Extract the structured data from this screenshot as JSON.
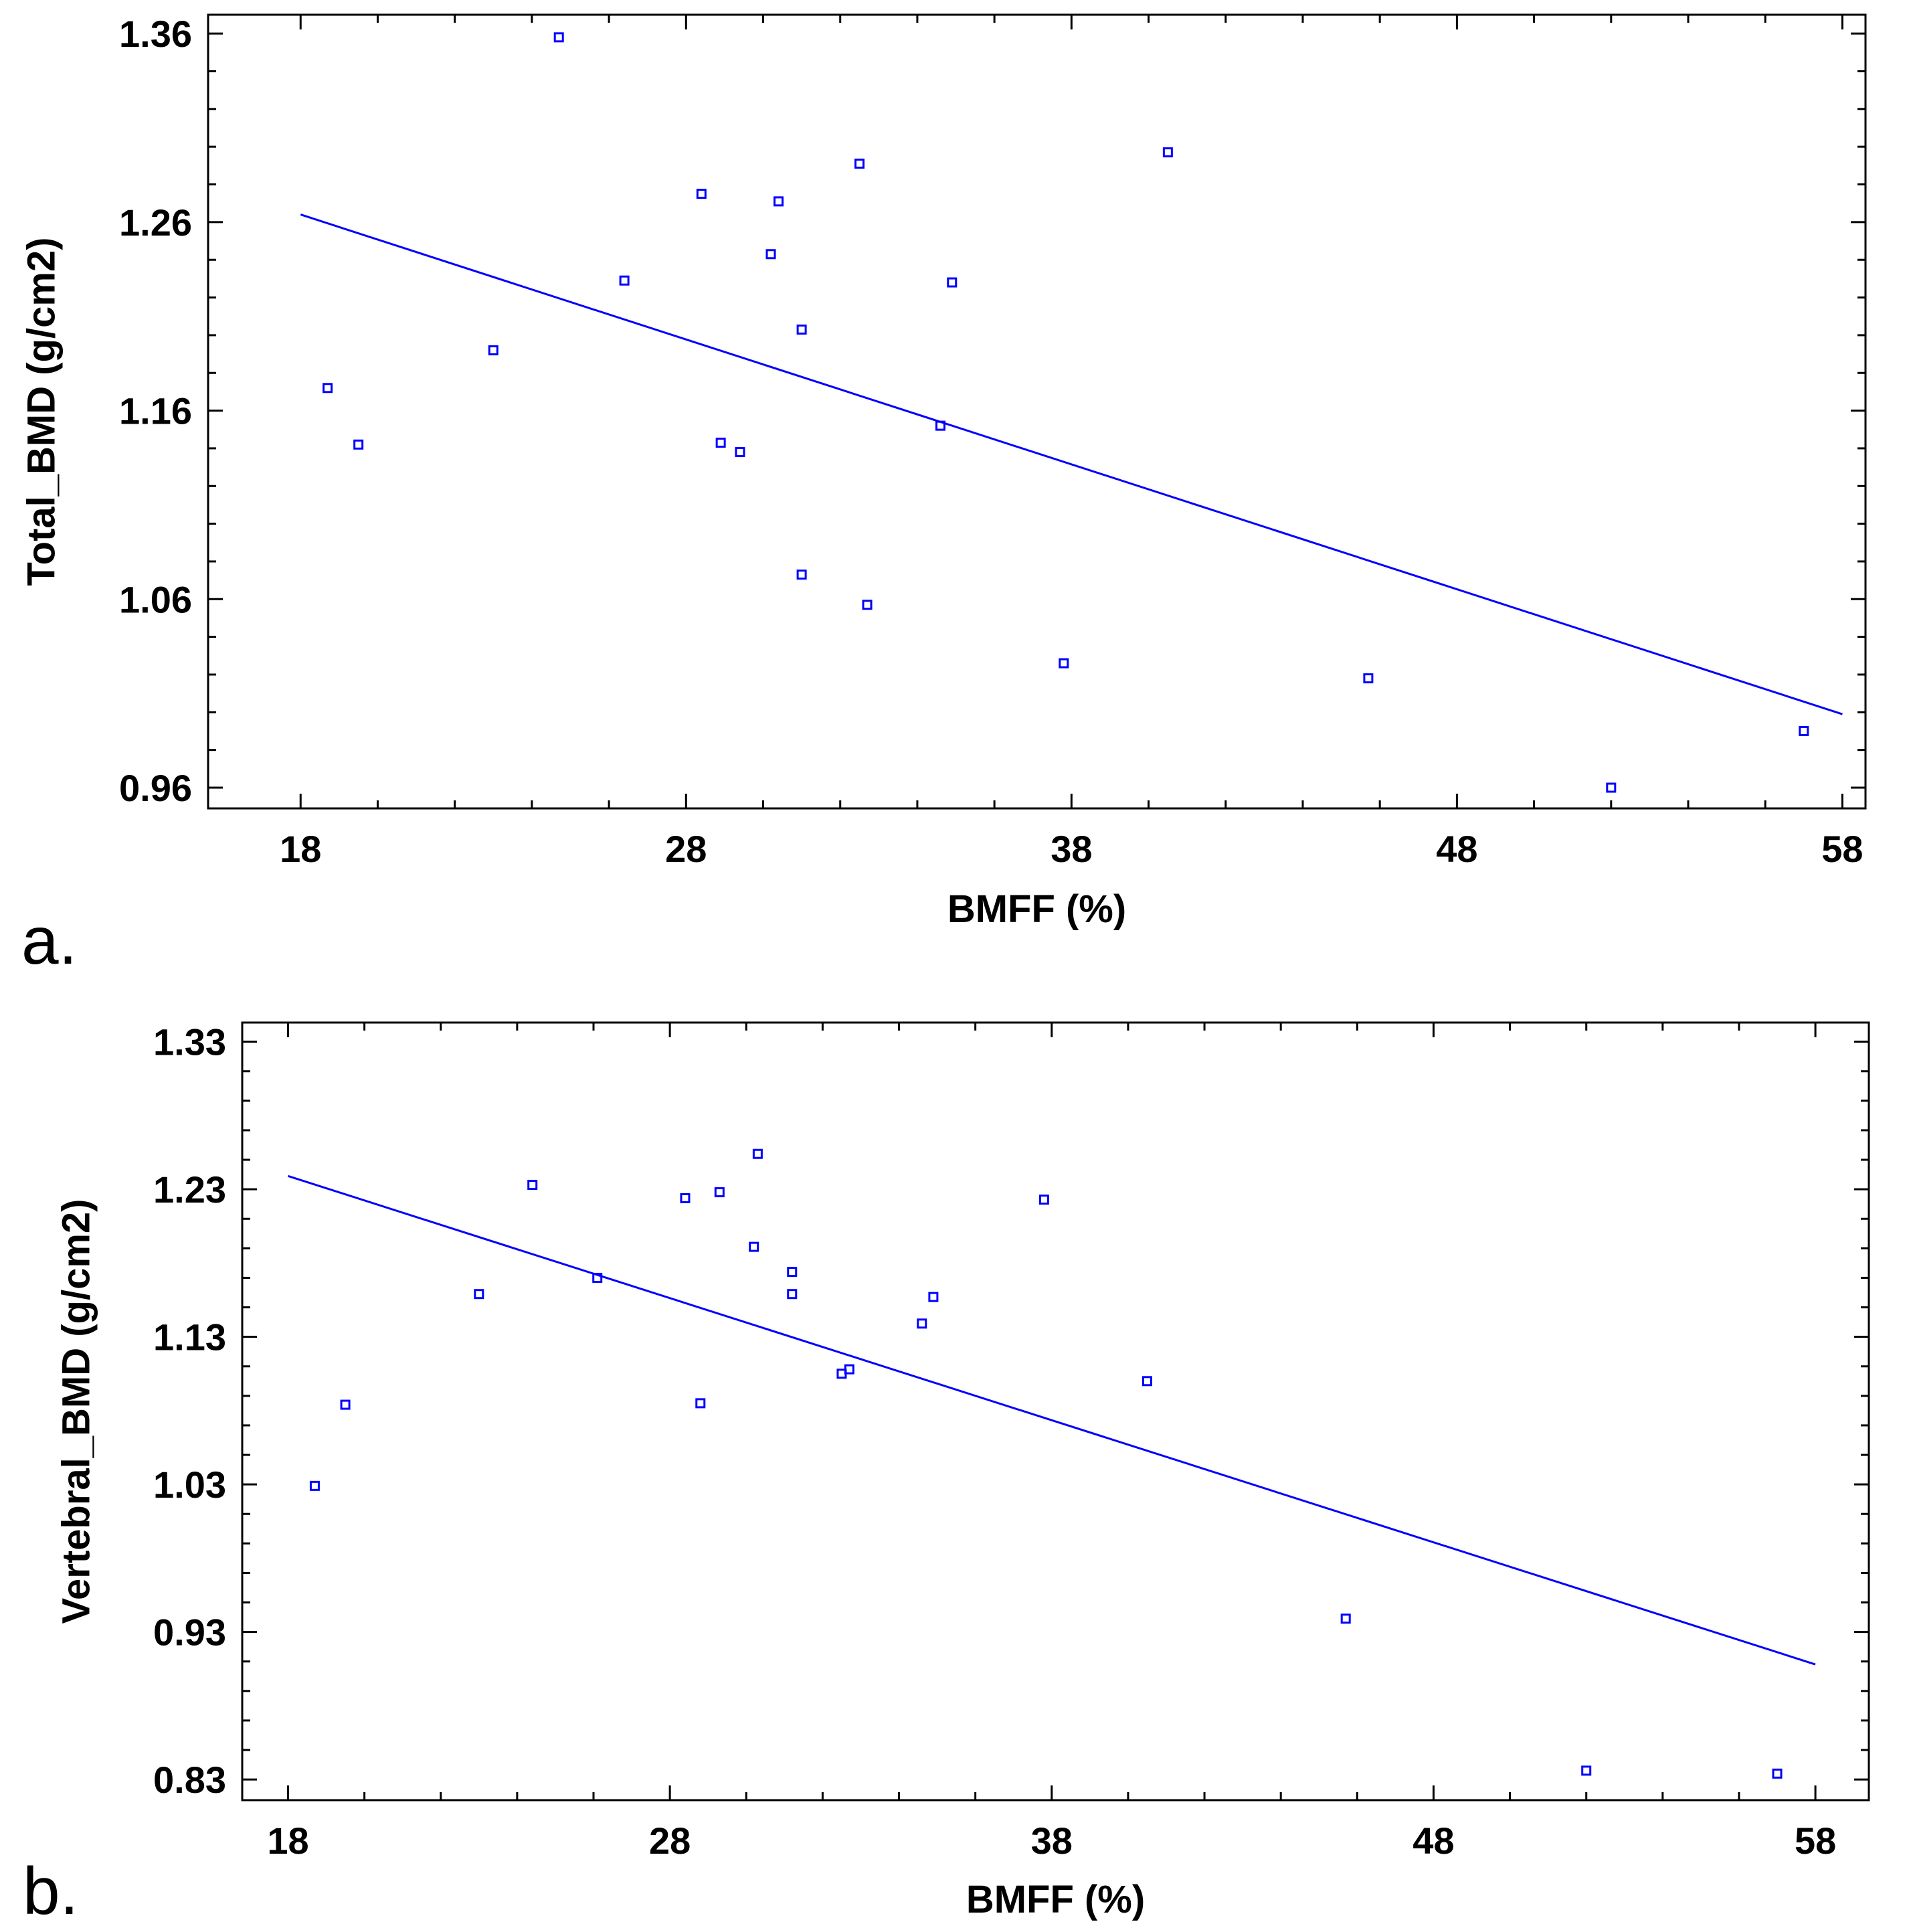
{
  "colors": {
    "series": "#0000ff",
    "axis": "#000000",
    "background": "#ffffff"
  },
  "chart_data": [
    {
      "type": "scatter",
      "panel_label": "a.",
      "title": "",
      "xlabel": "BMFF (%)",
      "ylabel": "Total_BMD (g/cm2)",
      "xlim": [
        15.6,
        58.6
      ],
      "ylim": [
        0.949,
        1.37
      ],
      "xticks": [
        18,
        28,
        38,
        48,
        58
      ],
      "xtick_labels": [
        "18",
        "28",
        "38",
        "48",
        "58"
      ],
      "yticks": [
        0.96,
        1.06,
        1.16,
        1.26,
        1.36
      ],
      "ytick_labels": [
        "0.96",
        "1.06",
        "1.16",
        "1.26",
        "1.36"
      ],
      "grid": false,
      "fit_line": {
        "x": [
          18,
          58
        ],
        "y": [
          1.264,
          0.999
        ]
      },
      "series": [
        {
          "name": "observations",
          "marker": "open-square",
          "x": [
            18.7,
            19.5,
            23.0,
            24.7,
            26.4,
            28.4,
            28.9,
            29.4,
            30.2,
            30.4,
            31.0,
            31.0,
            32.5,
            32.7,
            34.6,
            34.9,
            37.8,
            40.5,
            45.7,
            52.0,
            57.0
          ],
          "y": [
            1.172,
            1.142,
            1.192,
            1.358,
            1.229,
            1.275,
            1.143,
            1.138,
            1.243,
            1.271,
            1.073,
            1.203,
            1.291,
            1.057,
            1.152,
            1.228,
            1.026,
            1.297,
            1.018,
            0.96,
            0.99
          ]
        }
      ]
    },
    {
      "type": "scatter",
      "panel_label": "b.",
      "title": "",
      "xlabel": "BMFF (%)",
      "ylabel": "Vertebral_BMD (g/cm2)",
      "xlim": [
        16.8,
        59.4
      ],
      "ylim": [
        0.816,
        1.343
      ],
      "xticks": [
        18,
        28,
        38,
        48,
        58
      ],
      "xtick_labels": [
        "18",
        "28",
        "38",
        "48",
        "58"
      ],
      "yticks": [
        0.83,
        0.93,
        1.03,
        1.13,
        1.23,
        1.33
      ],
      "ytick_labels": [
        "0.83",
        "0.93",
        "1.03",
        "1.13",
        "1.23",
        "1.33"
      ],
      "grid": false,
      "fit_line": {
        "x": [
          18,
          58
        ],
        "y": [
          1.239,
          0.908
        ]
      },
      "series": [
        {
          "name": "observations",
          "marker": "open-square",
          "x": [
            18.7,
            19.5,
            23.0,
            24.4,
            26.1,
            28.4,
            28.8,
            29.3,
            30.2,
            30.3,
            31.2,
            31.2,
            32.5,
            32.7,
            34.6,
            34.9,
            37.8,
            40.5,
            45.7,
            52.0,
            57.0
          ],
          "y": [
            1.029,
            1.084,
            1.159,
            1.233,
            1.17,
            1.224,
            1.085,
            1.228,
            1.191,
            1.254,
            1.174,
            1.159,
            1.105,
            1.108,
            1.139,
            1.157,
            1.223,
            1.1,
            0.939,
            0.836,
            0.834
          ]
        }
      ]
    }
  ]
}
